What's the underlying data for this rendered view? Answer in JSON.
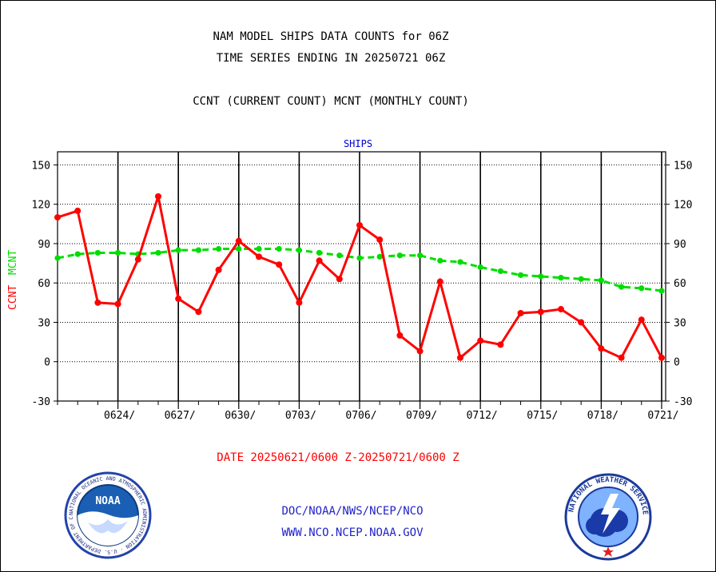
{
  "header": {
    "title_line1": "NAM MODEL SHIPS DATA COUNTS for 06Z",
    "title_line2": "TIME SERIES ENDING IN 20250721 06Z",
    "subtitle": "CCNT (CURRENT COUNT) MCNT (MONTHLY COUNT)"
  },
  "chart_data": {
    "type": "line",
    "title": "SHIPS",
    "ylabel_left": "CCNT",
    "ylabel_right": "MCNT",
    "ylim": [
      -30,
      160
    ],
    "yticks": [
      "150",
      "120",
      "90",
      "60",
      "30",
      "0",
      "-30"
    ],
    "ytick_values": [
      150,
      120,
      90,
      60,
      30,
      0,
      -30
    ],
    "xlim": [
      0,
      30.2
    ],
    "xticks": [
      "0624/",
      "0627/",
      "0630/",
      "0703/",
      "0706/",
      "0709/",
      "0712/",
      "0715/",
      "0718/",
      "0721/"
    ],
    "xtick_values": [
      3,
      6,
      9,
      12,
      15,
      18,
      21,
      24,
      27,
      30
    ],
    "xlabel": "DATE 20250621/0600 Z-20250721/0600 Z",
    "series": [
      {
        "name": "CCNT",
        "color": "#ff0000",
        "x": [
          0,
          1,
          2,
          3,
          4,
          5,
          6,
          7,
          8,
          9,
          10,
          11,
          12,
          13,
          14,
          15,
          16,
          17,
          18,
          19,
          20,
          21,
          22,
          23,
          24,
          25,
          26,
          27,
          28,
          29,
          30
        ],
        "values": [
          110,
          115,
          45,
          44,
          78,
          126,
          48,
          38,
          70,
          92,
          80,
          74,
          45,
          77,
          63,
          104,
          93,
          20,
          8,
          61,
          3,
          16,
          13,
          37,
          38,
          40,
          30,
          10,
          3,
          32,
          3
        ]
      },
      {
        "name": "MCNT",
        "color": "#00dd00",
        "x": [
          0,
          1,
          2,
          3,
          4,
          5,
          6,
          7,
          8,
          9,
          10,
          11,
          12,
          13,
          14,
          15,
          16,
          17,
          18,
          19,
          20,
          21,
          22,
          23,
          24,
          25,
          26,
          27,
          28,
          29,
          30
        ],
        "values": [
          79,
          82,
          83,
          83,
          82,
          83,
          85,
          85,
          86,
          86,
          86,
          86,
          85,
          83,
          81,
          79,
          80,
          81,
          81,
          77,
          76,
          72,
          69,
          66,
          65,
          64,
          63,
          62,
          57,
          56,
          54
        ]
      }
    ]
  },
  "footer": {
    "agency_path": "DOC/NOAA/NWS/NCEP/NCO",
    "website": "WWW.NCO.NCEP.NOAA.GOV"
  },
  "logos": {
    "left_text": "NOAA",
    "left_ring_text": "NATIONAL OCEANIC AND ATMOSPHERIC ADMINISTRATION · U.S. DEPARTMENT OF COMMERCE",
    "right_ring_text": "NATIONAL WEATHER SERVICE"
  },
  "colors": {
    "title": "#000000",
    "chart_title": "#0000cc",
    "date_label": "#ff0000",
    "footer": "#2222cc",
    "ccnt": "#ff0000",
    "mcnt": "#00dd00"
  }
}
